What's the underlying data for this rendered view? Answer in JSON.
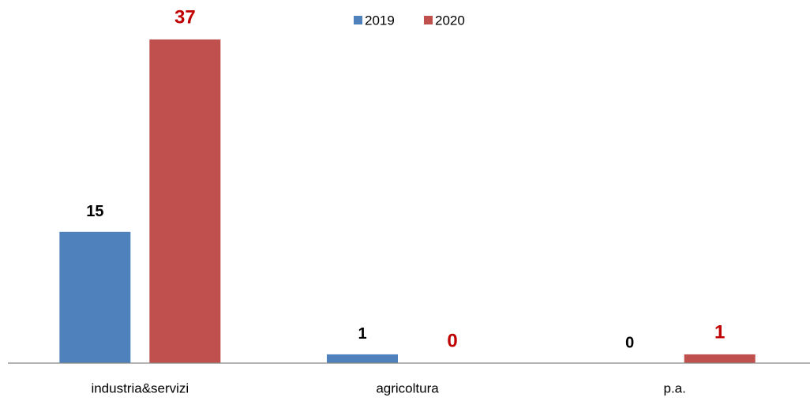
{
  "chart_data": {
    "type": "bar",
    "categories": [
      "industria&servizi",
      "agricoltura",
      "p.a."
    ],
    "series": [
      {
        "name": "2019",
        "color": "#4f81bd",
        "label_color": "#000000",
        "values": [
          15,
          1,
          0
        ]
      },
      {
        "name": "2020",
        "color": "#c0504d",
        "label_color": "#c00000",
        "values": [
          37,
          0,
          1
        ]
      }
    ],
    "legend": "top"
  }
}
